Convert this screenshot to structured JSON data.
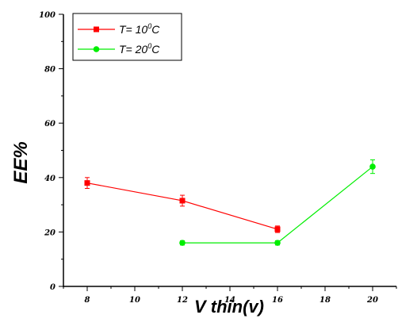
{
  "chart_data": {
    "type": "line",
    "title": "",
    "xlabel": "V thin(v)",
    "ylabel": "EE%",
    "xlim": [
      7,
      21
    ],
    "ylim": [
      0,
      100
    ],
    "xticks": [
      8,
      10,
      12,
      14,
      16,
      18,
      20
    ],
    "yticks": [
      0,
      20,
      40,
      60,
      80,
      100
    ],
    "grid": false,
    "legend_position": "top-left",
    "series": [
      {
        "name": "T= 10°C",
        "label_prefix": "T= 10",
        "label_sup": "0",
        "label_suffix": "C",
        "color": "#ff0000",
        "marker": "square",
        "points": [
          {
            "x": 8,
            "y": 38,
            "err": 2
          },
          {
            "x": 12,
            "y": 31.5,
            "err": 2
          },
          {
            "x": 16,
            "y": 21,
            "err": 1.2
          }
        ]
      },
      {
        "name": "T= 20°C",
        "label_prefix": "T= 20",
        "label_sup": "0",
        "label_suffix": "C",
        "color": "#00ee00",
        "marker": "circle",
        "points": [
          {
            "x": 12,
            "y": 16,
            "err": 0.8
          },
          {
            "x": 16,
            "y": 16,
            "err": 0.8
          },
          {
            "x": 20,
            "y": 44,
            "err": 2.5
          }
        ]
      }
    ]
  }
}
